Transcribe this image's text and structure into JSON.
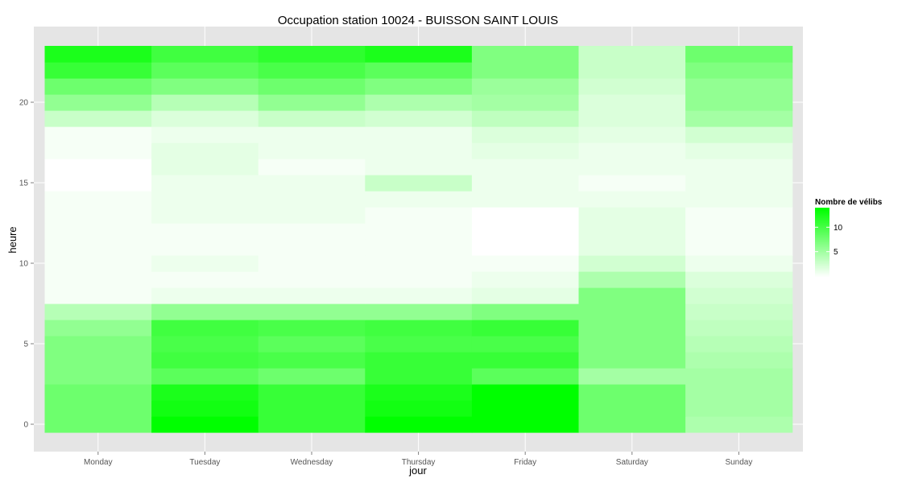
{
  "chart_data": {
    "type": "heatmap",
    "title": "Occupation station 10024 - BUISSON SAINT LOUIS",
    "xlabel": "jour",
    "ylabel": "heure",
    "categories": [
      "Monday",
      "Tuesday",
      "Wednesday",
      "Thursday",
      "Friday",
      "Saturday",
      "Sunday"
    ],
    "y": [
      0,
      1,
      2,
      3,
      4,
      5,
      6,
      7,
      8,
      9,
      10,
      11,
      12,
      13,
      14,
      15,
      16,
      17,
      18,
      19,
      20,
      21,
      22,
      23
    ],
    "y_ticks": [
      0,
      5,
      10,
      15,
      20
    ],
    "ylim": [
      -0.5,
      23.5
    ],
    "grid": true,
    "legend": {
      "title": "Nombre de vélibs",
      "ticks": [
        5,
        10
      ],
      "range": [
        0,
        14
      ],
      "position": "right",
      "low_color": "#ffffff",
      "high_color": "#00ff00"
    },
    "values_by_hour": [
      [
        8.0,
        14.0,
        11.0,
        14.0,
        14.0,
        8.0,
        4.5
      ],
      [
        8.0,
        13.0,
        11.0,
        13.0,
        14.0,
        8.0,
        5.0
      ],
      [
        8.0,
        12.5,
        11.0,
        12.5,
        14.0,
        8.0,
        5.0
      ],
      [
        7.0,
        9.0,
        8.0,
        11.0,
        9.0,
        5.0,
        5.0
      ],
      [
        7.0,
        10.5,
        10.0,
        11.0,
        11.0,
        7.0,
        4.5
      ],
      [
        7.0,
        10.0,
        9.0,
        10.0,
        10.0,
        7.0,
        4.0
      ],
      [
        6.0,
        10.5,
        10.0,
        10.5,
        11.0,
        7.0,
        3.5
      ],
      [
        4.0,
        6.0,
        6.0,
        6.0,
        7.0,
        7.0,
        3.0
      ],
      [
        0.5,
        1.0,
        1.0,
        1.0,
        1.5,
        7.0,
        2.5
      ],
      [
        0.5,
        0.5,
        0.5,
        0.5,
        1.0,
        4.5,
        2.0
      ],
      [
        0.5,
        1.0,
        0.5,
        0.5,
        0.5,
        2.5,
        1.0
      ],
      [
        0.5,
        0.5,
        0.5,
        0.5,
        0.0,
        1.5,
        0.5
      ],
      [
        0.5,
        0.5,
        0.5,
        0.5,
        0.0,
        1.5,
        0.5
      ],
      [
        0.5,
        1.0,
        1.0,
        0.5,
        0.0,
        1.5,
        0.5
      ],
      [
        0.5,
        1.0,
        1.0,
        1.0,
        1.0,
        1.0,
        1.0
      ],
      [
        0.0,
        1.0,
        1.0,
        3.0,
        1.0,
        0.5,
        1.0
      ],
      [
        0.0,
        1.5,
        0.5,
        1.0,
        1.0,
        1.0,
        1.0
      ],
      [
        0.5,
        1.5,
        1.0,
        1.0,
        1.5,
        1.0,
        1.5
      ],
      [
        0.5,
        1.0,
        1.0,
        1.0,
        2.0,
        1.5,
        2.5
      ],
      [
        3.0,
        2.0,
        3.0,
        2.5,
        3.5,
        2.0,
        5.0
      ],
      [
        6.0,
        4.0,
        6.0,
        4.5,
        5.0,
        2.0,
        6.0
      ],
      [
        8.0,
        7.0,
        8.0,
        7.0,
        5.5,
        2.5,
        6.0
      ],
      [
        11.0,
        9.0,
        10.0,
        9.0,
        7.0,
        3.0,
        7.0
      ],
      [
        12.5,
        10.5,
        11.5,
        12.5,
        7.0,
        3.0,
        8.0
      ]
    ]
  }
}
